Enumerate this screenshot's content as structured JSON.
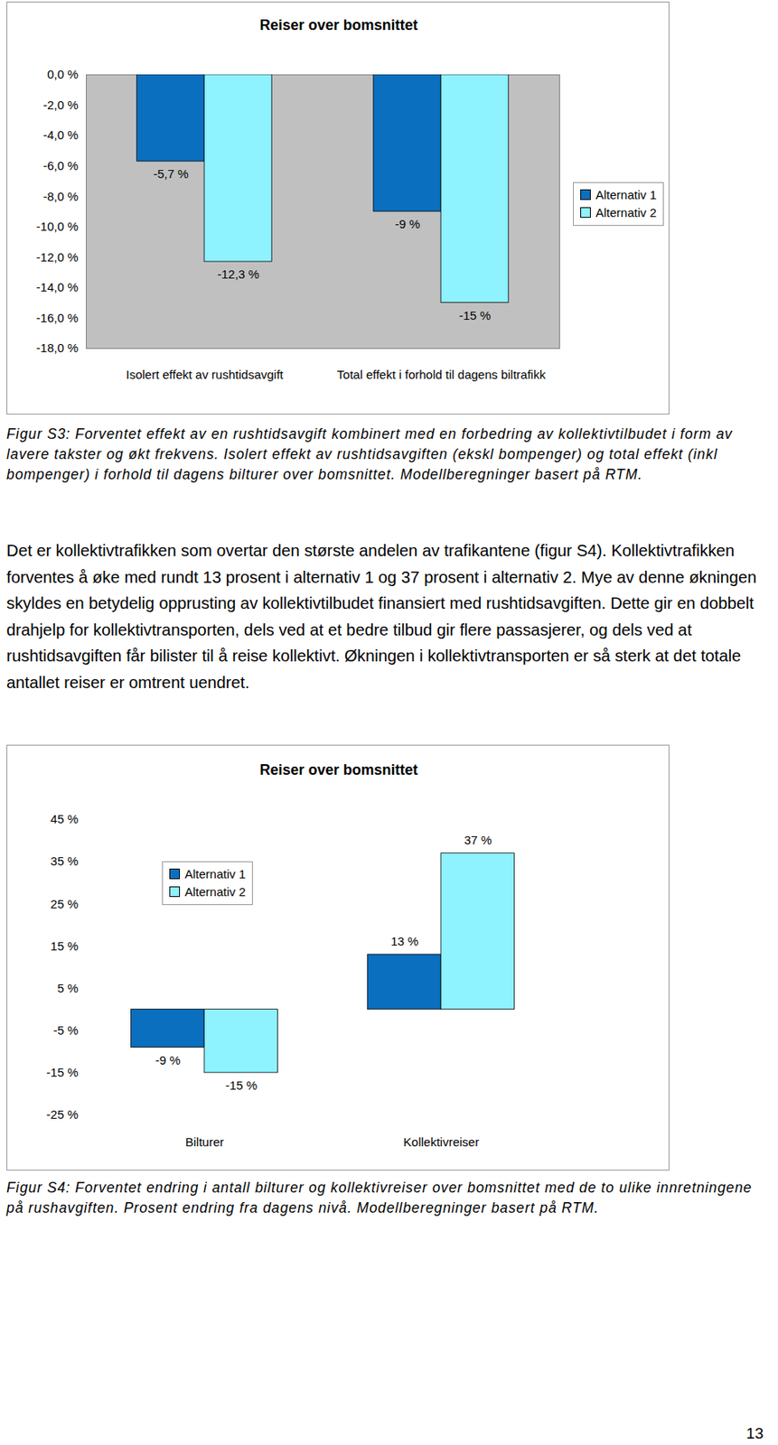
{
  "chart_data": [
    {
      "type": "bar",
      "title": "Reiser over bomsnittet",
      "categories": [
        "Isolert effekt av rushtidsavgift",
        "Total effekt i forhold til dagens biltrafikk"
      ],
      "series": [
        {
          "name": "Alternativ 1",
          "color": "#0a6fbf",
          "values": [
            -5.7,
            -9
          ],
          "value_labels": [
            "-5,7 %",
            "-9 %"
          ]
        },
        {
          "name": "Alternativ 2",
          "color": "#8ff2ff",
          "values": [
            -12.3,
            -15
          ],
          "value_labels": [
            "-12,3 %",
            "-15 %"
          ]
        }
      ],
      "ylim": [
        -18,
        0
      ],
      "yticks": [
        {
          "value": 0,
          "label": "0,0 %"
        },
        {
          "value": -2,
          "label": "-2,0 %"
        },
        {
          "value": -4,
          "label": "-4,0 %"
        },
        {
          "value": -6,
          "label": "-6,0 %"
        },
        {
          "value": -8,
          "label": "-8,0 %"
        },
        {
          "value": -10,
          "label": "-10,0 %"
        },
        {
          "value": -12,
          "label": "-12,0 %"
        },
        {
          "value": -14,
          "label": "-14,0 %"
        },
        {
          "value": -16,
          "label": "-16,0 %"
        },
        {
          "value": -18,
          "label": "-18,0 %"
        }
      ],
      "grid": false,
      "legend": "right",
      "data_labels": true,
      "caption": "Figur S3: Forventet effekt av en rushtidsavgift kombinert med en forbedring av kollektivtilbudet i form av lavere takster og økt frekvens. Isolert effekt av rushtidsavgiften (ekskl bompenger) og total effekt (inkl bompenger) i forhold til dagens bilturer over bomsnittet. Modellberegninger basert på RTM."
    },
    {
      "type": "bar",
      "title": "Reiser over bomsnittet",
      "categories": [
        "Bilturer",
        "Kollektivreiser"
      ],
      "series": [
        {
          "name": "Alternativ 1",
          "color": "#0a6fbf",
          "values": [
            -9,
            13
          ],
          "value_labels": [
            "-9 %",
            "13 %"
          ]
        },
        {
          "name": "Alternativ 2",
          "color": "#8ff2ff",
          "values": [
            -15,
            37
          ],
          "value_labels": [
            "-15 %",
            "37 %"
          ]
        }
      ],
      "ylim": [
        -25,
        45
      ],
      "yticks": [
        {
          "value": 45,
          "label": "45 %"
        },
        {
          "value": 35,
          "label": "35 %"
        },
        {
          "value": 25,
          "label": "25 %"
        },
        {
          "value": 15,
          "label": "15 %"
        },
        {
          "value": 5,
          "label": "5 %"
        },
        {
          "value": -5,
          "label": "-5 %"
        },
        {
          "value": -15,
          "label": "-15 %"
        },
        {
          "value": -25,
          "label": "-25 %"
        }
      ],
      "grid": false,
      "legend": "top-left",
      "data_labels": true,
      "caption": "Figur S4: Forventet endring i antall bilturer og kollektivreiser over bomsnittet med de to ulike innretningene på rushavgiften. Prosent endring fra dagens nivå. Modellberegninger basert på RTM."
    }
  ],
  "document": {
    "paragraph": "Det er kollektivtrafikken som overtar den største andelen av trafikantene (figur S4). Kollektivtrafikken forventes å øke med rundt 13 prosent i alternativ 1 og 37 prosent i alternativ 2. Mye av denne økningen skyldes en betydelig opprusting av kollektivtilbudet finansiert med rushtidsavgiften. Dette gir en dobbelt drahjelp for kollektivtransporten, dels ved at et bedre tilbud gir flere passasjerer, og dels ved at rushtidsavgiften får bilister til å reise kollektivt. Økningen i kollektivtransporten er så sterk at det totale antallet reiser er omtrent uendret.",
    "page_number": "13"
  }
}
